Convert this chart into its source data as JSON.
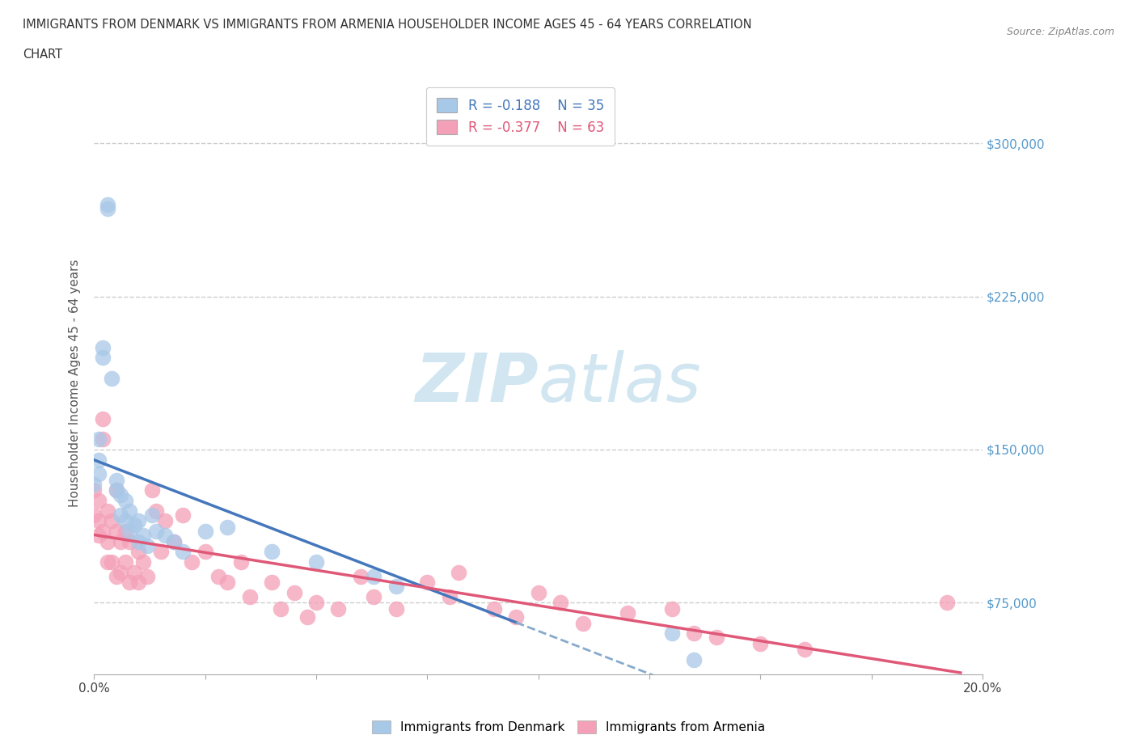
{
  "title_line1": "IMMIGRANTS FROM DENMARK VS IMMIGRANTS FROM ARMENIA HOUSEHOLDER INCOME AGES 45 - 64 YEARS CORRELATION",
  "title_line2": "CHART",
  "source_text": "Source: ZipAtlas.com",
  "ylabel": "Householder Income Ages 45 - 64 years",
  "xlim": [
    0.0,
    0.2
  ],
  "ylim": [
    40000,
    325000
  ],
  "yticks": [
    75000,
    150000,
    225000,
    300000
  ],
  "ytick_labels_right": [
    "$75,000",
    "$150,000",
    "$225,000",
    "$300,000"
  ],
  "xtick_vals": [
    0.0,
    0.025,
    0.05,
    0.075,
    0.1,
    0.125,
    0.15,
    0.175,
    0.2
  ],
  "xtick_labels": [
    "0.0%",
    "",
    "",
    "",
    "",
    "",
    "",
    "",
    "20.0%"
  ],
  "color_denmark": "#a8c8e8",
  "color_armenia": "#f4a0b8",
  "line_color_denmark": "#4477bb",
  "line_color_armenia": "#e05878",
  "line_color_denmark_dashed": "#88aacc",
  "right_axis_color": "#5599cc",
  "bg_color": "#ffffff",
  "grid_color": "#cccccc",
  "watermark_color": "#cce4f0",
  "denmark_x": [
    0.0,
    0.001,
    0.001,
    0.001,
    0.002,
    0.002,
    0.003,
    0.003,
    0.004,
    0.005,
    0.005,
    0.006,
    0.006,
    0.007,
    0.007,
    0.008,
    0.008,
    0.009,
    0.01,
    0.01,
    0.011,
    0.012,
    0.013,
    0.014,
    0.016,
    0.018,
    0.02,
    0.025,
    0.03,
    0.04,
    0.05,
    0.063,
    0.068,
    0.13,
    0.135
  ],
  "denmark_y": [
    133000,
    155000,
    145000,
    138000,
    200000,
    195000,
    270000,
    268000,
    185000,
    135000,
    130000,
    128000,
    118000,
    125000,
    115000,
    120000,
    110000,
    113000,
    115000,
    105000,
    108000,
    103000,
    118000,
    110000,
    108000,
    105000,
    100000,
    110000,
    112000,
    100000,
    95000,
    88000,
    83000,
    60000,
    47000
  ],
  "armenia_x": [
    0.0,
    0.0,
    0.001,
    0.001,
    0.001,
    0.002,
    0.002,
    0.002,
    0.003,
    0.003,
    0.003,
    0.004,
    0.004,
    0.005,
    0.005,
    0.005,
    0.006,
    0.006,
    0.007,
    0.007,
    0.008,
    0.008,
    0.009,
    0.01,
    0.01,
    0.011,
    0.012,
    0.013,
    0.014,
    0.015,
    0.016,
    0.018,
    0.02,
    0.022,
    0.025,
    0.028,
    0.03,
    0.033,
    0.035,
    0.04,
    0.042,
    0.045,
    0.048,
    0.05,
    0.055,
    0.06,
    0.063,
    0.068,
    0.075,
    0.08,
    0.082,
    0.09,
    0.095,
    0.1,
    0.105,
    0.11,
    0.12,
    0.13,
    0.135,
    0.14,
    0.15,
    0.16,
    0.192
  ],
  "armenia_y": [
    130000,
    118000,
    125000,
    115000,
    108000,
    165000,
    155000,
    110000,
    120000,
    105000,
    95000,
    115000,
    95000,
    130000,
    110000,
    88000,
    105000,
    90000,
    110000,
    95000,
    105000,
    85000,
    90000,
    100000,
    85000,
    95000,
    88000,
    130000,
    120000,
    100000,
    115000,
    105000,
    118000,
    95000,
    100000,
    88000,
    85000,
    95000,
    78000,
    85000,
    72000,
    80000,
    68000,
    75000,
    72000,
    88000,
    78000,
    72000,
    85000,
    78000,
    90000,
    72000,
    68000,
    80000,
    75000,
    65000,
    70000,
    72000,
    60000,
    58000,
    55000,
    52000,
    75000
  ]
}
